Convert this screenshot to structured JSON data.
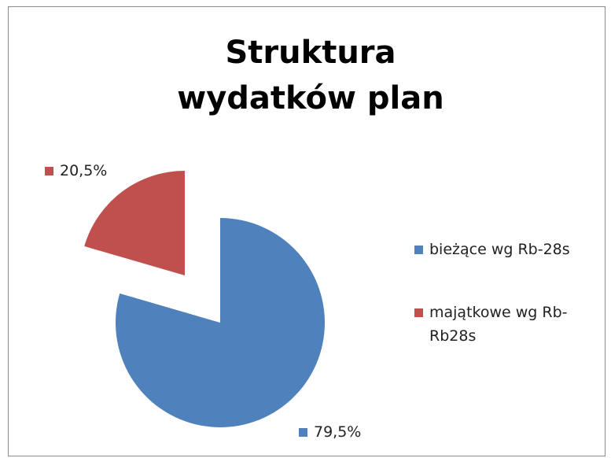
{
  "chart_data": {
    "type": "pie",
    "title": "Struktura wydatków plan",
    "categories": [
      "bieżące wg Rb-28s",
      "majątkowe wg Rb-Rb28s"
    ],
    "values": [
      79.5,
      20.5
    ],
    "value_labels": [
      "79,5%",
      "20,5%"
    ],
    "colors": [
      "#4f81bd",
      "#c0504d"
    ],
    "legend": "right"
  }
}
